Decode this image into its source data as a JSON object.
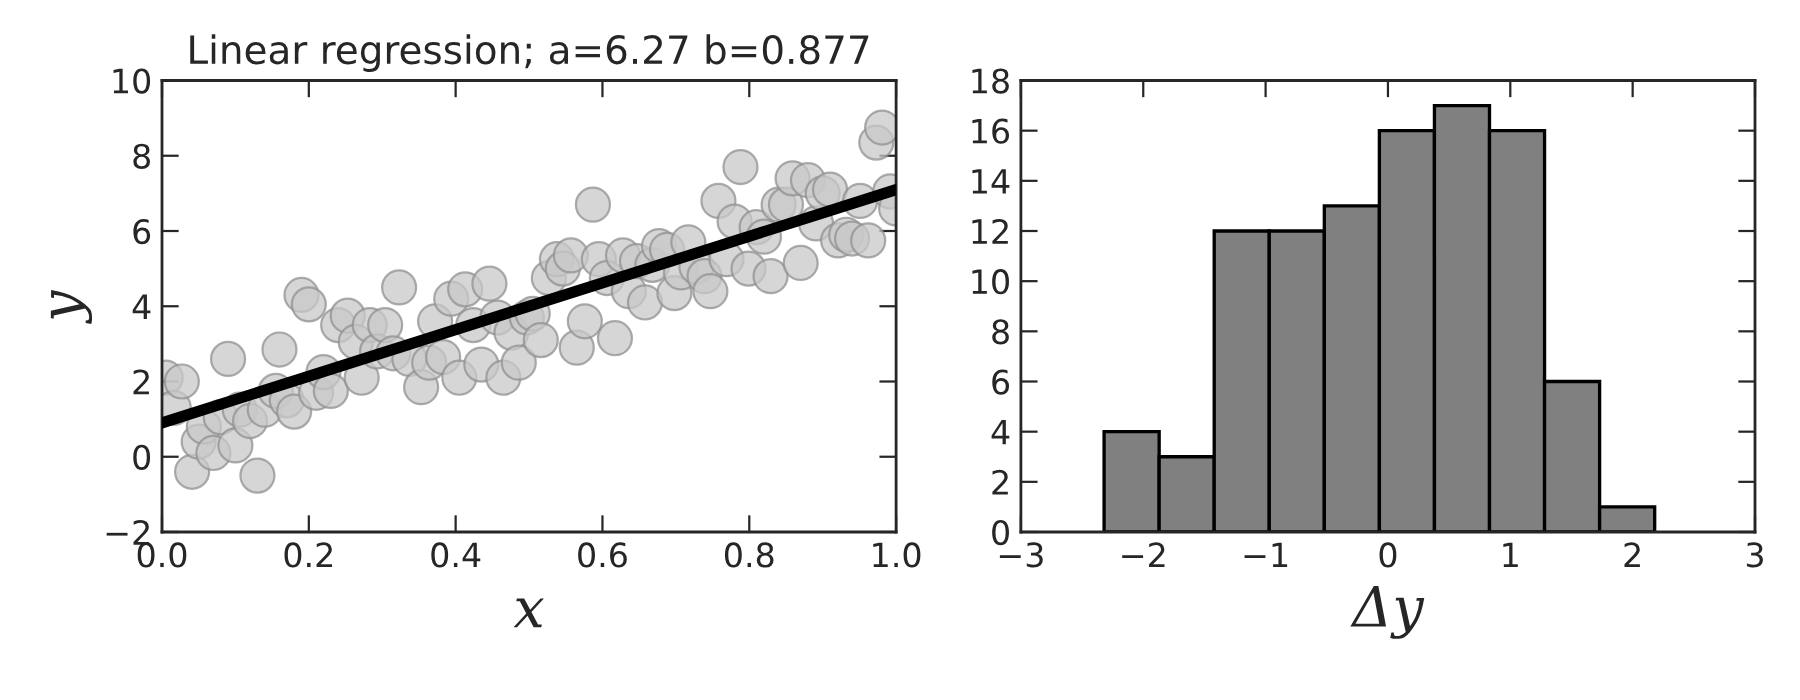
{
  "chart_data": [
    {
      "type": "scatter",
      "title": "Linear regression; a=6.27 b=0.877",
      "xlabel": "x",
      "ylabel": "y",
      "grid": false,
      "legend": false,
      "xlim": [
        0,
        1
      ],
      "ylim": [
        -2,
        10
      ],
      "xticks": [
        {
          "value": 0,
          "label": "0.0"
        },
        {
          "value": 0.2,
          "label": "0.2"
        },
        {
          "value": 0.4,
          "label": "0.4"
        },
        {
          "value": 0.6,
          "label": "0.6"
        },
        {
          "value": 0.8,
          "label": "0.8"
        },
        {
          "value": 1,
          "label": "1.0"
        }
      ],
      "yticks": [
        {
          "value": -2,
          "label": "−2"
        },
        0,
        2,
        4,
        6,
        8,
        10
      ],
      "series": [
        {
          "type": "scatter",
          "marker": "circle",
          "color": "#c8c8c8",
          "x": [
            0.005,
            0.016,
            0.027,
            0.041,
            0.05,
            0.057,
            0.07,
            0.09,
            0.08,
            0.1,
            0.106,
            0.12,
            0.13,
            0.14,
            0.155,
            0.16,
            0.17,
            0.18,
            0.19,
            0.2,
            0.21,
            0.22,
            0.23,
            0.24,
            0.253,
            0.264,
            0.272,
            0.283,
            0.293,
            0.304,
            0.315,
            0.323,
            0.337,
            0.353,
            0.364,
            0.372,
            0.383,
            0.394,
            0.405,
            0.413,
            0.424,
            0.435,
            0.446,
            0.457,
            0.465,
            0.476,
            0.486,
            0.497,
            0.505,
            0.516,
            0.527,
            0.538,
            0.546,
            0.557,
            0.565,
            0.576,
            0.587,
            0.595,
            0.606,
            0.617,
            0.628,
            0.636,
            0.647,
            0.658,
            0.668,
            0.677,
            0.688,
            0.698,
            0.707,
            0.717,
            0.728,
            0.739,
            0.747,
            0.758,
            0.769,
            0.78,
            0.788,
            0.799,
            0.81,
            0.82,
            0.829,
            0.84,
            0.85,
            0.859,
            0.87,
            0.88,
            0.891,
            0.9,
            0.91,
            0.921,
            0.932,
            0.94,
            0.951,
            0.962,
            0.973,
            0.981,
            0.992,
            1.0
          ],
          "values": [
            2.1,
            1.3,
            2.0,
            -0.4,
            0.4,
            0.8,
            0.1,
            2.6,
            1.05,
            0.3,
            1.25,
            0.95,
            -0.5,
            1.25,
            1.75,
            2.85,
            1.5,
            1.2,
            4.3,
            4.05,
            1.7,
            2.25,
            1.75,
            3.5,
            3.75,
            3.05,
            2.1,
            3.5,
            2.8,
            3.5,
            2.75,
            4.5,
            2.6,
            1.85,
            2.5,
            3.6,
            2.65,
            4.2,
            2.1,
            4.45,
            3.5,
            2.45,
            4.6,
            3.7,
            2.1,
            3.3,
            2.5,
            3.7,
            3.8,
            3.1,
            4.75,
            5.25,
            5.0,
            5.35,
            2.9,
            3.6,
            6.7,
            5.25,
            4.75,
            3.15,
            5.35,
            4.4,
            5.2,
            4.1,
            5.1,
            5.6,
            5.5,
            4.35,
            4.9,
            5.7,
            5.05,
            4.8,
            4.4,
            6.8,
            5.25,
            6.25,
            7.7,
            5.0,
            6.1,
            5.85,
            4.8,
            6.7,
            6.7,
            7.4,
            5.15,
            7.35,
            6.2,
            7.0,
            7.1,
            5.75,
            5.9,
            5.8,
            6.8,
            5.75,
            8.35,
            8.75,
            7.05,
            6.6
          ]
        },
        {
          "type": "line",
          "color": "#000000",
          "x": [
            0,
            1
          ],
          "values": [
            0.9,
            7.1
          ]
        }
      ]
    },
    {
      "type": "histogram",
      "xlabel": "Δy",
      "grid": false,
      "legend": false,
      "color": "#808080",
      "bins": [
        -2.32,
        -1.87,
        -1.42,
        -0.97,
        -0.52,
        -0.07,
        0.38,
        0.83,
        1.28,
        1.73,
        2.18
      ],
      "values": [
        4,
        3,
        12,
        12,
        13,
        16,
        17,
        16,
        6,
        1
      ],
      "xlim": [
        -3,
        3
      ],
      "ylim": [
        0,
        18
      ],
      "xticks": [
        {
          "value": -3,
          "label": "−3"
        },
        {
          "value": -2,
          "label": "−2"
        },
        {
          "value": -1,
          "label": "−1"
        },
        0,
        1,
        2,
        3
      ],
      "yticks": [
        0,
        2,
        4,
        6,
        8,
        10,
        12,
        14,
        16,
        18
      ]
    }
  ]
}
